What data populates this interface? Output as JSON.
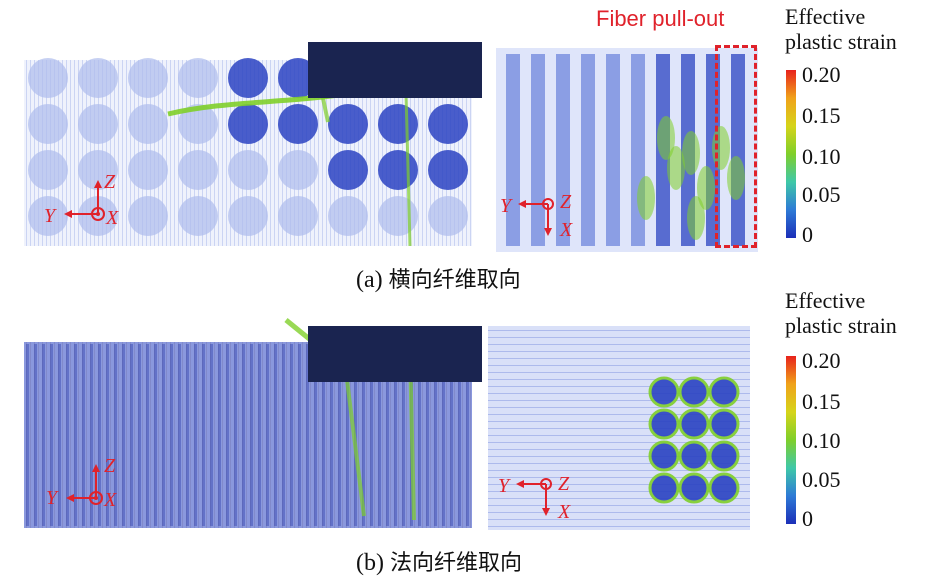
{
  "colorbar": {
    "title_line1": "Effective",
    "title_line2": "plastic strain",
    "ticks": [
      "0.20",
      "0.15",
      "0.10",
      "0.05",
      "0"
    ],
    "colors": [
      "#e8221c",
      "#f0a21a",
      "#d6d41a",
      "#7fcf2a",
      "#3fc8a8",
      "#2e7ad6",
      "#1c2fb8"
    ]
  },
  "annotation": {
    "fiber_pullout": "Fiber pull-out"
  },
  "axes": {
    "z": "Z",
    "y": "Y",
    "x": "X"
  },
  "captions": {
    "a_prefix": "(a) ",
    "a_text": "横向纤维取向",
    "b_prefix": "(b) ",
    "b_text": "法向纤维取向"
  },
  "colors": {
    "accent_red": "#e0222b",
    "mesh_light": "#c9d3f2",
    "mesh_dark": "#2136b8",
    "green_strain": "#7fcf2a",
    "indenter": "#1a2450"
  }
}
